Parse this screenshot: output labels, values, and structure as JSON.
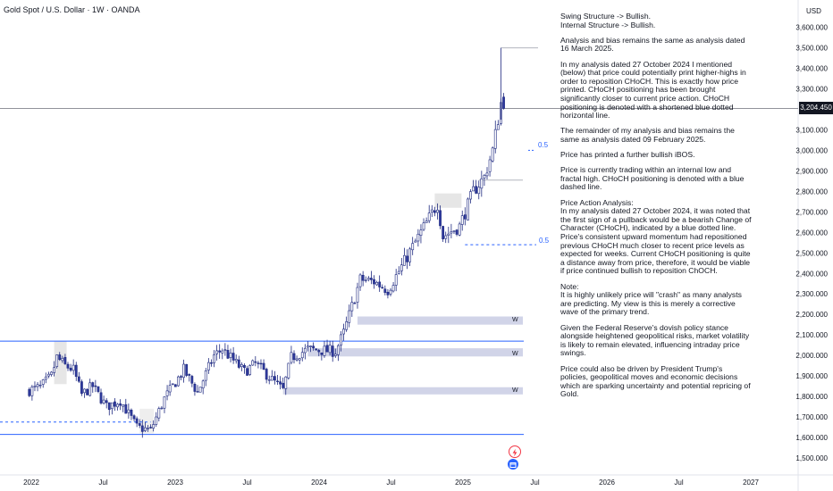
{
  "header": {
    "symbol": "Gold Spot / U.S. Dollar · 1W · OANDA"
  },
  "price_axis": {
    "currency": "USD",
    "current_price": "3,204.450"
  },
  "notes": [
    "Swing Structure -> Bullish.\nInternal Structure -> Bullish.",
    "Analysis and bias remains the same as analysis dated 16 March 2025.",
    "In my analysis dated 27 October 2024 I mentioned (below) that price could potentially print higher-highs in order to reposition CHoCH.  This is exactly how price printed.  CHoCH positioning has been brought significantly closer to current price action.  CHoCH positioning is denoted with a shortened blue dotted horizontal line.",
    "The remainder of my analysis and bias remains the same as analysis dated 09 February 2025.",
    "Price has printed a further bullish iBOS.",
    "Price is currently trading within an internal low and fractal high.  CHoCH positioning is denoted with a blue dashed line.",
    "Price Action Analysis:\nIn my analysis dated 27 October 2024, it was noted that the first sign of a pullback would be a bearish Change of Character (CHoCH), indicated by a blue dotted line. Price's consistent upward momentum had repositioned previous CHoCH much closer to recent price levels as expected for weeks. Current CHoCH positioning is quite a distance away from price, therefore, it would be viable if price continued bullish to reposition ChOCH.",
    "Note:\nIt is highly unlikely price will \"crash\" as many analysts are predicting.  My view is this is merely a corrective wave of the primary trend.",
    "Given the Federal Reserve's dovish policy stance alongside heightened geopolitical risks, market volatility is likely to remain elevated, influencing intraday price swings.",
    "Price could also be driven by President Trump's policies, geopolitical moves and economic decisions which are sparking uncertainty and potential repricing of Gold."
  ],
  "zone_labels": [
    "W",
    "W",
    "W"
  ],
  "fib_labels": [
    "0.5",
    "0.5"
  ],
  "colors": {
    "up_candle": "#ffffff",
    "down_candle": "#2f3a9e",
    "candle_outline": "#1f2a80",
    "level_line": "#2962ff",
    "zone_fill": "#d1d4e8",
    "fractal_zone": "#e6e6e6"
  },
  "icons": [
    "lightning-icon",
    "calendar-icon"
  ],
  "chart_data": {
    "type": "candlestick",
    "x_axis": {
      "ticks": [
        "2022",
        "Jul",
        "2023",
        "Jul",
        "2024",
        "Jul",
        "2025",
        "Jul",
        "2026",
        "Jul",
        "2027"
      ]
    },
    "y_axis": {
      "range": [
        1450,
        3650
      ],
      "ticks": [
        1500,
        1600,
        1700,
        1800,
        1900,
        2000,
        2100,
        2200,
        2300,
        2400,
        2500,
        2600,
        2700,
        2800,
        2900,
        3000,
        3100,
        3200,
        3300,
        3400,
        3500,
        3600
      ],
      "tick_labels": [
        "1,500.000",
        "1,600.000",
        "1,700.000",
        "1,800.000",
        "1,900.000",
        "2,000.000",
        "2,100.000",
        "2,200.000",
        "2,300.000",
        "2,400.000",
        "2,500.000",
        "2,600.000",
        "2,700.000",
        "2,800.000",
        "2,900.000",
        "3,000.000",
        "3,100.000",
        "3,200.000",
        "3,300.000",
        "3,400.000",
        "3,500.000",
        "3,600.000"
      ]
    },
    "current_price": 3204.45,
    "start_date": "2021-12-27",
    "end_date": "2025-04-14",
    "waypoints": [
      [
        "2021-12-27",
        1830
      ],
      [
        "2022-01-24",
        1845
      ],
      [
        "2022-02-21",
        1900
      ],
      [
        "2022-03-07",
        1990
      ],
      [
        "2022-03-28",
        1950
      ],
      [
        "2022-04-18",
        1930
      ],
      [
        "2022-05-09",
        1810
      ],
      [
        "2022-06-06",
        1850
      ],
      [
        "2022-07-11",
        1750
      ],
      [
        "2022-08-15",
        1780
      ],
      [
        "2022-09-26",
        1650
      ],
      [
        "2022-10-31",
        1635
      ],
      [
        "2022-12-05",
        1790
      ],
      [
        "2023-01-23",
        1930
      ],
      [
        "2023-02-27",
        1820
      ],
      [
        "2023-04-10",
        2000
      ],
      [
        "2023-05-01",
        2030
      ],
      [
        "2023-06-26",
        1920
      ],
      [
        "2023-07-24",
        1960
      ],
      [
        "2023-10-02",
        1830
      ],
      [
        "2023-10-23",
        1990
      ],
      [
        "2023-12-04",
        2030
      ],
      [
        "2024-02-12",
        2020
      ],
      [
        "2024-03-04",
        2110
      ],
      [
        "2024-04-15",
        2370
      ],
      [
        "2024-05-20",
        2360
      ],
      [
        "2024-06-24",
        2320
      ],
      [
        "2024-07-22",
        2410
      ],
      [
        "2024-09-16",
        2600
      ],
      [
        "2024-10-28",
        2740
      ],
      [
        "2024-11-11",
        2580
      ],
      [
        "2024-12-23",
        2630
      ],
      [
        "2025-01-27",
        2800
      ],
      [
        "2025-02-24",
        2870
      ],
      [
        "2025-03-17",
        3000
      ],
      [
        "2025-04-07",
        3230
      ],
      [
        "2025-04-14",
        3204
      ]
    ],
    "levels": [
      {
        "name": "strong-high",
        "price": 2070,
        "from": "2021-12-27",
        "to": "2025-04-14",
        "style": "solid"
      },
      {
        "name": "strong-low",
        "price": 1615,
        "from": "2021-12-27",
        "to": "2025-04-14",
        "style": "solid"
      },
      {
        "name": "old-choch",
        "price": 1675,
        "from": "2021-12-27",
        "to": "2022-10-31",
        "style": "dashed"
      },
      {
        "name": "current-choch",
        "price": 2540,
        "from": "2025-01-06",
        "to": "2025-04-14",
        "style": "dashed"
      },
      {
        "name": "fractal-high",
        "price": 3500,
        "from": "2025-04-07",
        "to": "2025-04-14",
        "style": "solid"
      },
      {
        "name": "internal-low",
        "price": 2855,
        "from": "2025-02-10",
        "to": "2025-04-14",
        "style": "solid"
      }
    ],
    "zones": [
      {
        "name": "demand-zone-1",
        "from": "2024-04-08",
        "to": "2025-04-14",
        "low": 2150,
        "high": 2190
      },
      {
        "name": "demand-zone-2",
        "from": "2023-12-04",
        "to": "2025-04-14",
        "low": 1995,
        "high": 2035
      },
      {
        "name": "demand-zone-3",
        "from": "2023-10-02",
        "to": "2025-04-14",
        "low": 1810,
        "high": 1845
      }
    ]
  }
}
